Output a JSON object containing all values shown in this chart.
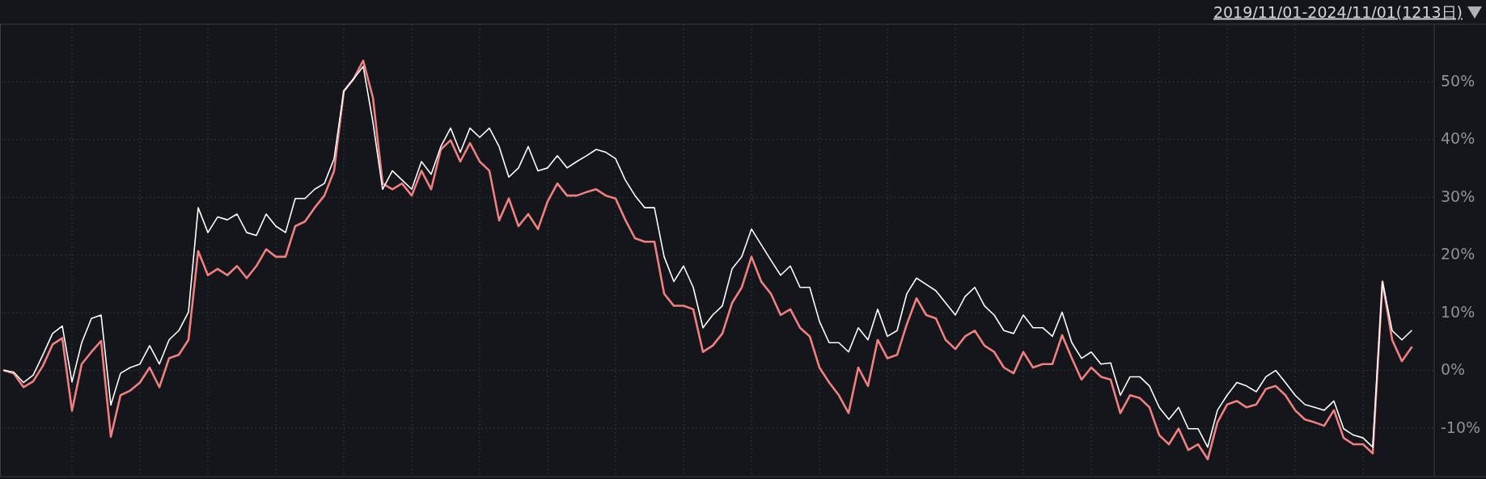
{
  "chart_data": {
    "type": "line",
    "title": "2019/11/01-2024/11/01(1213日)",
    "categories": [
      null,
      null,
      null,
      null,
      null,
      null,
      null,
      null,
      null,
      null,
      null,
      null,
      null,
      null,
      null,
      null,
      null,
      null,
      null,
      null,
      null,
      null,
      null,
      null,
      null,
      null,
      null,
      null,
      null,
      null,
      null,
      null,
      null,
      null,
      null,
      null,
      null,
      null,
      null,
      null,
      null,
      null,
      null,
      null,
      null,
      null,
      null,
      null,
      null,
      null,
      null,
      null,
      null,
      null,
      null,
      null,
      null,
      null,
      null,
      null,
      null,
      null,
      null,
      null,
      null,
      null,
      null,
      null,
      null,
      null,
      null,
      null,
      null,
      null,
      null,
      null,
      null,
      null,
      null,
      null,
      null,
      null,
      null,
      null,
      null,
      null,
      null,
      null,
      null,
      null,
      null,
      null,
      null,
      null,
      null,
      null,
      null,
      null,
      null,
      null,
      null,
      null,
      null,
      null,
      null,
      null,
      null,
      null,
      null,
      null,
      null,
      null,
      null,
      null,
      null,
      null,
      null,
      null,
      null,
      null,
      null,
      null,
      null,
      null,
      null,
      null,
      null,
      null,
      null,
      null,
      null,
      null,
      null,
      null,
      null,
      null,
      null,
      null,
      null,
      null,
      null,
      null,
      null,
      null,
      null,
      null
    ],
    "series": [
      {
        "color": "#ffffff",
        "values": [
          0,
          -0.3,
          -2.1,
          -0.8,
          2.7,
          6.4,
          7.7,
          -2,
          4.8,
          9,
          9.6,
          -6,
          -0.5,
          0.5,
          1.1,
          4.3,
          1.1,
          5.3,
          6.9,
          10.1,
          28.2,
          23.9,
          26.6,
          26.1,
          27.1,
          23.9,
          23.4,
          27.1,
          25,
          23.9,
          29.8,
          29.8,
          31.4,
          32.4,
          36.7,
          48.4,
          50.5,
          52.7,
          43,
          31.4,
          34.6,
          33,
          31.4,
          36.2,
          34,
          38.8,
          42,
          37.8,
          42,
          40.4,
          42,
          38.8,
          33.5,
          35.1,
          38.8,
          34.6,
          35.1,
          37.2,
          35.1,
          36.2,
          37.2,
          38.3,
          37.8,
          36.7,
          33,
          30.3,
          28.2,
          28.2,
          19.7,
          15.4,
          18.1,
          14.4,
          7.4,
          9.6,
          11.2,
          17.6,
          19.7,
          24.5,
          21.8,
          19.1,
          16.5,
          18.1,
          14.4,
          14.4,
          8.5,
          4.8,
          4.8,
          3.2,
          7.4,
          5.3,
          10.6,
          5.9,
          6.9,
          13.3,
          16,
          14.9,
          13.8,
          11.7,
          9.6,
          12.8,
          14.4,
          11.2,
          9.6,
          6.9,
          6.4,
          9.6,
          7.4,
          7.4,
          5.9,
          10.1,
          4.8,
          2.1,
          3.2,
          1.1,
          1.3,
          -4.3,
          -1.1,
          -1.1,
          -2.7,
          -6.4,
          -8.5,
          -6.4,
          -10.1,
          -10.1,
          -13.3,
          -6.9,
          -4.3,
          -2.1,
          -2.7,
          -3.7,
          -1.1,
          0,
          -2.1,
          -4.3,
          -5.9,
          -6.4,
          -6.9,
          -5.3,
          -10.1,
          -11.2,
          -11.7,
          -13.3,
          15.4,
          6.9,
          5.3,
          6.9
        ]
      },
      {
        "color": "#f08080",
        "values": [
          0,
          -0.5,
          -2.9,
          -1.9,
          0.8,
          4.5,
          5.6,
          -7,
          1.1,
          3.2,
          5.1,
          -11.5,
          -4.3,
          -3.5,
          -2.1,
          0.5,
          -2.9,
          2.1,
          2.7,
          5.3,
          20.7,
          16.5,
          17.6,
          16.5,
          18.1,
          16,
          18.1,
          21,
          19.7,
          19.7,
          25,
          25.8,
          28.2,
          30.3,
          34.6,
          48.4,
          50.5,
          53.7,
          47.3,
          32.4,
          31.4,
          32.4,
          30.3,
          34.6,
          31.4,
          38.3,
          39.9,
          36.2,
          39.4,
          36.2,
          34.6,
          26,
          29.8,
          25,
          27.1,
          24.5,
          29.3,
          32.4,
          30.3,
          30.3,
          30.9,
          31.4,
          30.3,
          29.8,
          26.1,
          22.9,
          22.3,
          22.3,
          13.3,
          11.2,
          11.2,
          10.6,
          3.2,
          4.3,
          6.4,
          11.7,
          14.4,
          19.7,
          15.4,
          13.3,
          9.6,
          10.6,
          7.4,
          5.9,
          0.5,
          -2.1,
          -4.3,
          -7.4,
          0.5,
          -2.7,
          5.3,
          2.1,
          2.7,
          8,
          12.5,
          9.6,
          9,
          5.3,
          3.7,
          5.9,
          6.9,
          4.3,
          3.2,
          0.5,
          -0.5,
          3.2,
          0.5,
          1.1,
          1.1,
          6.1,
          2.1,
          -1.6,
          0.5,
          -1.1,
          -1.6,
          -7.4,
          -4.3,
          -4.8,
          -6.4,
          -11.2,
          -12.8,
          -10.1,
          -13.8,
          -12.8,
          -15.4,
          -9,
          -5.9,
          -5.3,
          -6.4,
          -5.9,
          -3.2,
          -2.7,
          -4.3,
          -6.9,
          -8.5,
          -9,
          -9.6,
          -6.9,
          -11.7,
          -12.8,
          -12.8,
          -14.4,
          15.4,
          5.3,
          1.6,
          4
        ]
      }
    ],
    "ylim": [
      -18.4,
      60
    ],
    "yticks": [
      {
        "value": -10,
        "label": "-10%"
      },
      {
        "value": 0,
        "label": "0%"
      },
      {
        "value": 10,
        "label": "10%"
      },
      {
        "value": 20,
        "label": "20%"
      },
      {
        "value": 30,
        "label": "30%"
      },
      {
        "value": 40,
        "label": "40%"
      },
      {
        "value": 50,
        "label": "50%"
      }
    ],
    "grid": true,
    "line_style": "solid"
  }
}
